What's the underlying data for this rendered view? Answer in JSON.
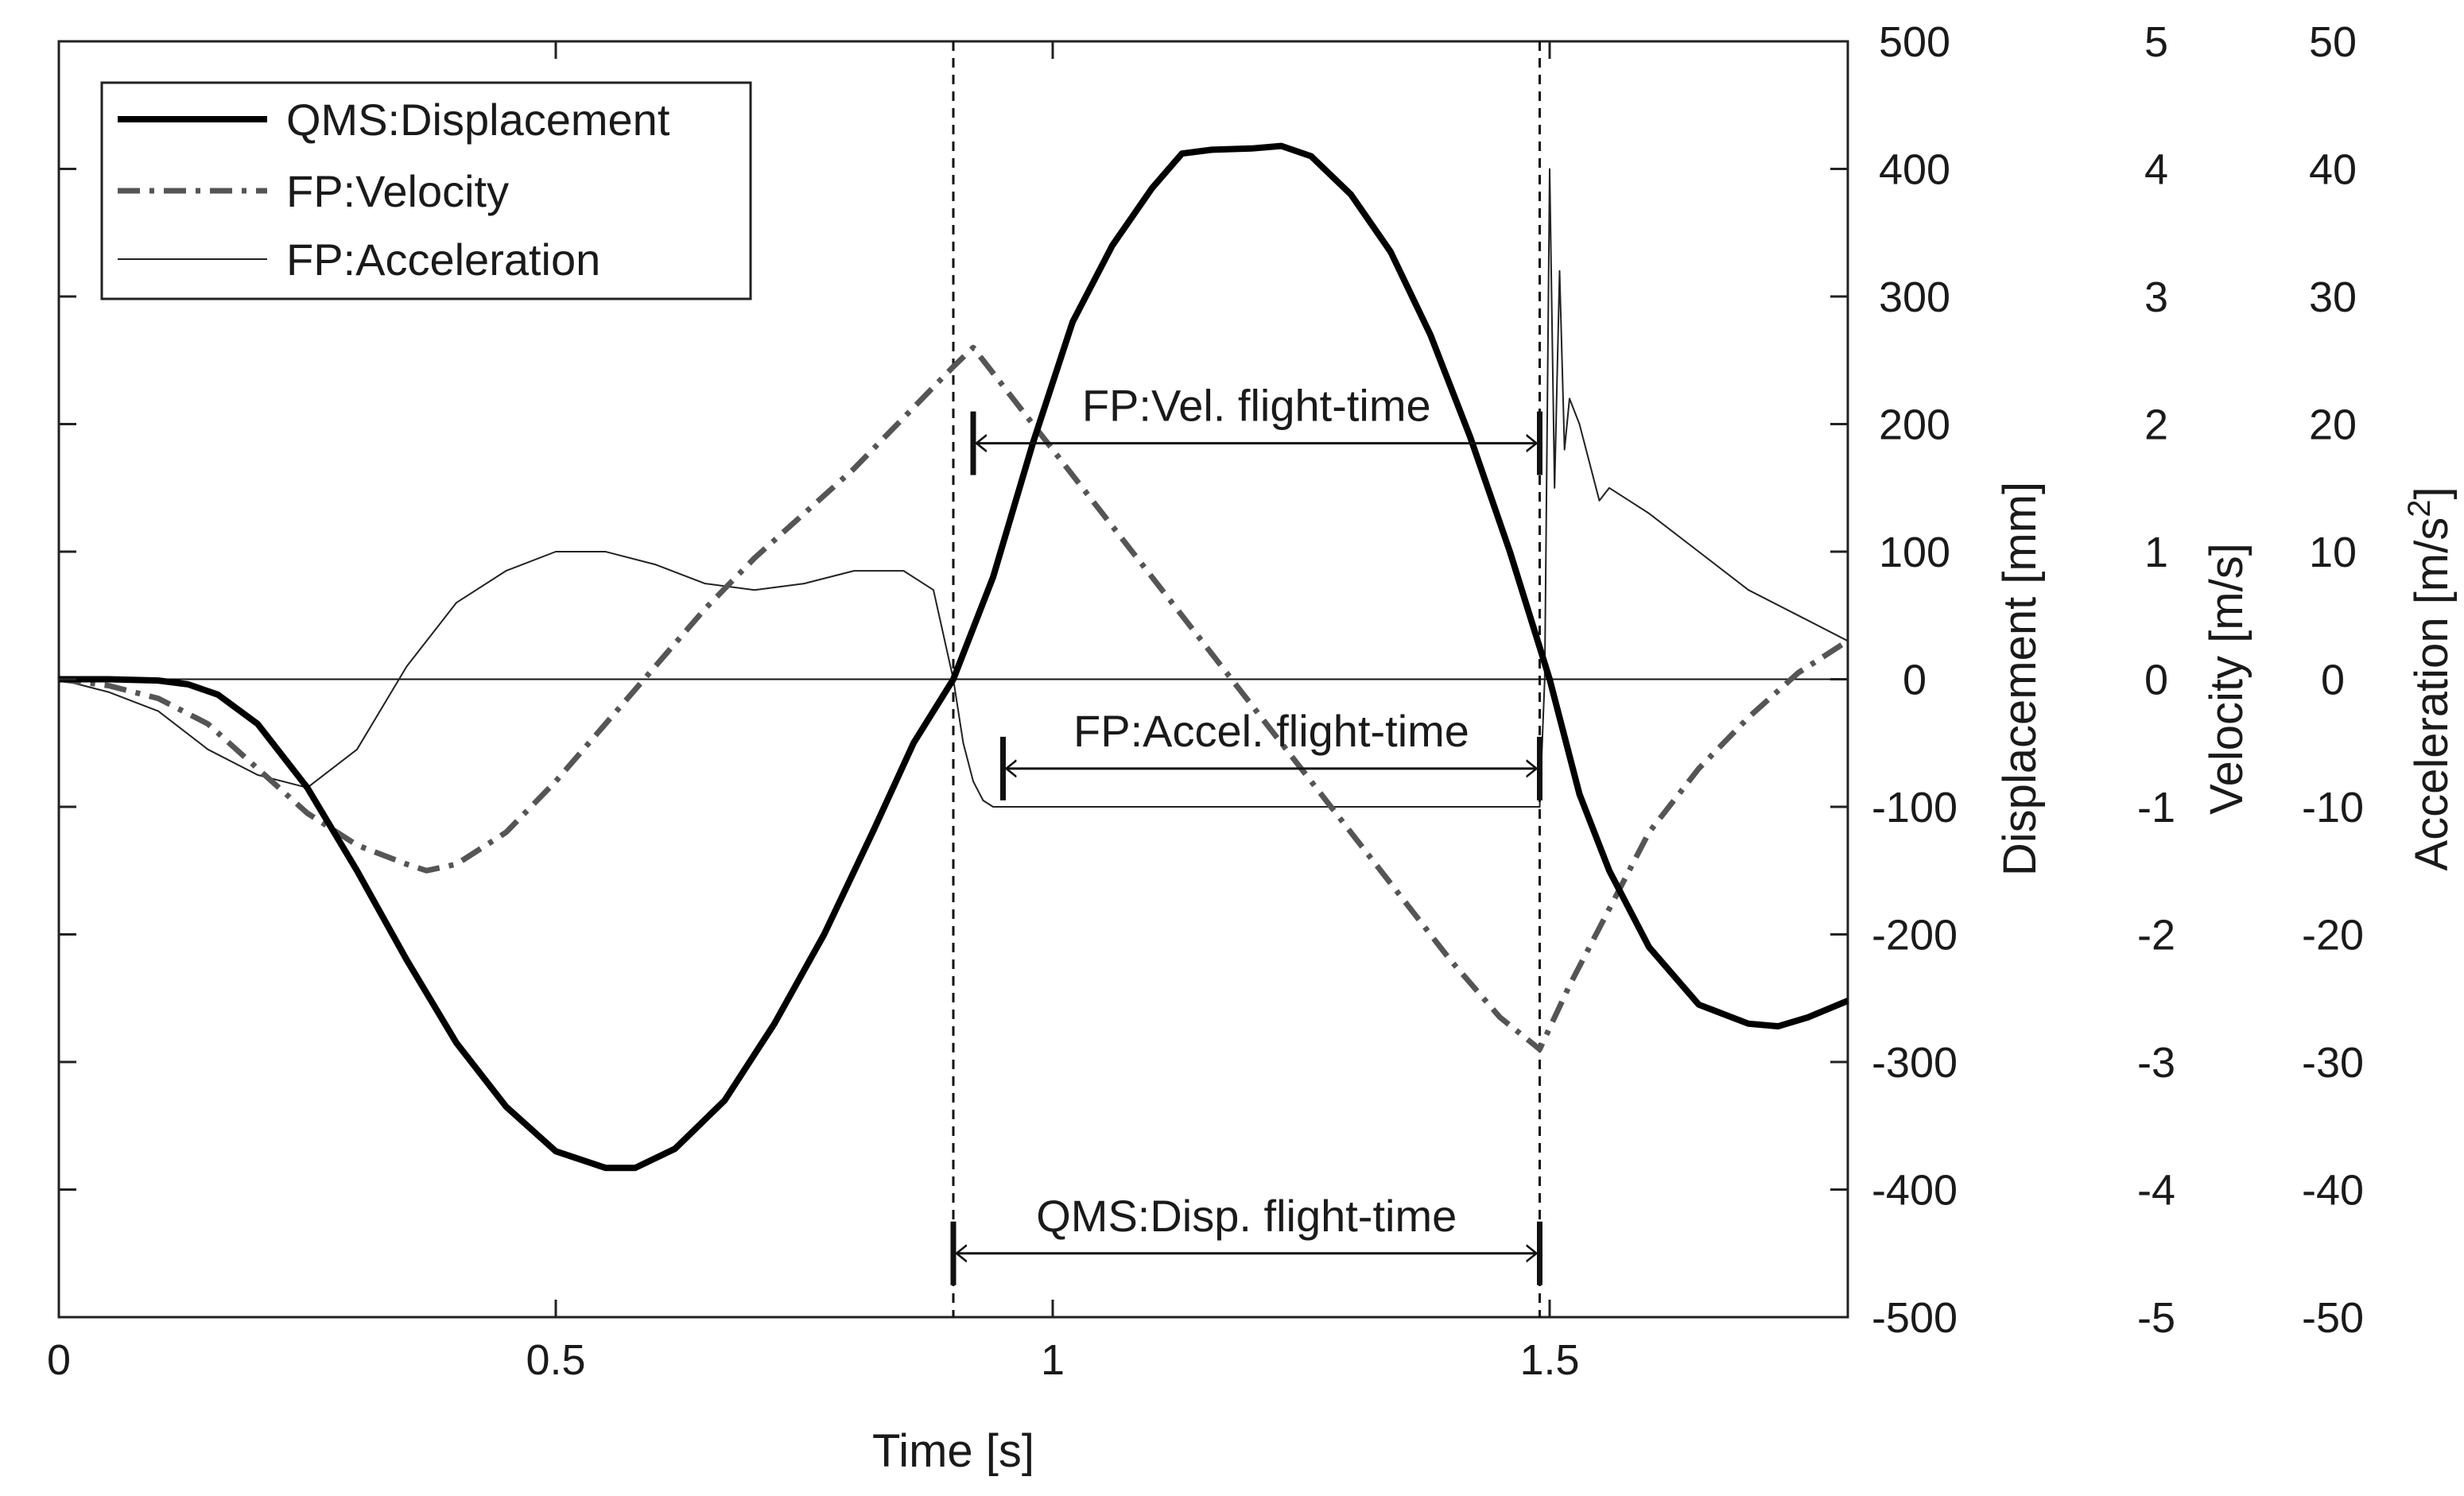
{
  "chart_data": {
    "type": "line",
    "title": "",
    "xlabel": "Time [s]",
    "xlim": [
      0,
      1.8
    ],
    "x_ticks": [
      0,
      0.5,
      1,
      1.5
    ],
    "x_tick_labels": [
      "0",
      "0.5",
      "1",
      "1.5"
    ],
    "y_axes": [
      {
        "label": "Displacement [mm]",
        "ylim": [
          -500,
          500
        ],
        "ticks": [
          500,
          400,
          300,
          200,
          100,
          0,
          -100,
          -200,
          -300,
          -400,
          -500
        ],
        "tick_labels": [
          "500",
          "400",
          "300",
          "200",
          "100",
          "0",
          "-100",
          "-200",
          "-300",
          "-400",
          "-500"
        ]
      },
      {
        "label": "Velocity [m/s]",
        "ylim": [
          -5,
          5
        ],
        "ticks": [
          5,
          4,
          3,
          2,
          1,
          0,
          -1,
          -2,
          -3,
          -4,
          -5
        ],
        "tick_labels": [
          "5",
          "4",
          "3",
          "2",
          "1",
          "0",
          "-1",
          "-2",
          "-3",
          "-4",
          "-5"
        ]
      },
      {
        "label_main": "Acceleration [m/s",
        "label_sup": "2",
        "label_end": "]",
        "ylim": [
          -50,
          50
        ],
        "ticks": [
          50,
          40,
          30,
          20,
          10,
          0,
          -10,
          -20,
          -30,
          -40,
          -50
        ],
        "tick_labels": [
          "50",
          "40",
          "30",
          "20",
          "10",
          "0",
          "-10",
          "-20",
          "-30",
          "-40",
          "-50"
        ]
      }
    ],
    "legend": {
      "placement": "top-left",
      "entries": [
        "QMS:Displacement",
        "FP:Velocity",
        "FP:Acceleration"
      ]
    },
    "series": [
      {
        "name": "QMS:Displacement",
        "units": "mm",
        "style": "solid-thick",
        "color": "#000000",
        "x": [
          0,
          0.05,
          0.1,
          0.13,
          0.16,
          0.2,
          0.25,
          0.3,
          0.35,
          0.4,
          0.45,
          0.5,
          0.55,
          0.58,
          0.62,
          0.67,
          0.72,
          0.77,
          0.82,
          0.86,
          0.9,
          0.94,
          0.98,
          1.02,
          1.06,
          1.1,
          1.13,
          1.16,
          1.2,
          1.23,
          1.26,
          1.3,
          1.34,
          1.38,
          1.42,
          1.46,
          1.5,
          1.53,
          1.56,
          1.6,
          1.65,
          1.7,
          1.73,
          1.76,
          1.8
        ],
        "y": [
          0,
          0,
          -1,
          -4,
          -12,
          -35,
          -85,
          -150,
          -220,
          -285,
          -335,
          -370,
          -383,
          -383,
          -368,
          -330,
          -270,
          -200,
          -118,
          -50,
          0,
          80,
          185,
          280,
          340,
          385,
          412,
          415,
          416,
          418,
          410,
          380,
          335,
          270,
          190,
          100,
          0,
          -90,
          -150,
          -210,
          -255,
          -270,
          -272,
          -265,
          -252
        ]
      },
      {
        "name": "FP:Velocity",
        "units": "m/s",
        "style": "dash-dot",
        "color": "#555555",
        "x": [
          0,
          0.05,
          0.1,
          0.15,
          0.2,
          0.25,
          0.3,
          0.35,
          0.37,
          0.4,
          0.45,
          0.5,
          0.55,
          0.6,
          0.65,
          0.7,
          0.75,
          0.8,
          0.85,
          0.9,
          0.92,
          0.95,
          1.0,
          1.05,
          1.1,
          1.15,
          1.2,
          1.25,
          1.3,
          1.35,
          1.4,
          1.45,
          1.49,
          1.52,
          1.56,
          1.6,
          1.65,
          1.7,
          1.75,
          1.8
        ],
        "y": [
          0,
          -0.05,
          -0.15,
          -0.35,
          -0.7,
          -1.05,
          -1.3,
          -1.45,
          -1.5,
          -1.45,
          -1.2,
          -0.8,
          -0.35,
          0.1,
          0.55,
          0.95,
          1.3,
          1.65,
          2.05,
          2.45,
          2.6,
          2.3,
          1.8,
          1.3,
          0.8,
          0.3,
          -0.2,
          -0.7,
          -1.2,
          -1.7,
          -2.2,
          -2.65,
          -2.9,
          -2.4,
          -1.8,
          -1.2,
          -0.7,
          -0.3,
          0.05,
          0.3
        ]
      },
      {
        "name": "FP:Acceleration",
        "units": "m/s^2",
        "style": "solid-thin",
        "color": "#222222",
        "x": [
          0,
          0.05,
          0.1,
          0.15,
          0.2,
          0.25,
          0.3,
          0.35,
          0.4,
          0.45,
          0.5,
          0.55,
          0.6,
          0.65,
          0.7,
          0.75,
          0.8,
          0.85,
          0.88,
          0.9,
          0.91,
          0.92,
          0.93,
          0.94,
          0.95,
          1.0,
          1.1,
          1.2,
          1.3,
          1.4,
          1.49,
          1.495,
          1.5,
          1.505,
          1.51,
          1.515,
          1.52,
          1.53,
          1.54,
          1.55,
          1.56,
          1.58,
          1.6,
          1.65,
          1.7,
          1.75,
          1.8
        ],
        "y": [
          0,
          -1,
          -2.5,
          -5.5,
          -7.5,
          -8.5,
          -5.5,
          1,
          6,
          8.5,
          10,
          10,
          9,
          7.5,
          7,
          7.5,
          8.5,
          8.5,
          7,
          0,
          -5,
          -8,
          -9.5,
          -10,
          -10,
          -10,
          -10,
          -10,
          -10,
          -10,
          -10,
          0,
          40,
          15,
          32,
          18,
          22,
          20,
          17,
          14,
          15,
          14,
          13,
          10,
          7,
          5,
          3
        ]
      }
    ],
    "vertical_markers": [
      {
        "x": 0.9,
        "style": "dashed"
      },
      {
        "x": 1.49,
        "style": "dashed"
      }
    ],
    "annotations": [
      {
        "label": "FP:Vel. flight-time",
        "x_start": 0.92,
        "x_end": 1.49,
        "axis": "velocity",
        "y": 1.85
      },
      {
        "label": "FP:Accel. flight-time",
        "x_start": 0.95,
        "x_end": 1.49,
        "axis": "acceleration",
        "y": -7
      },
      {
        "label": "QMS:Disp. flight-time",
        "x_start": 0.9,
        "x_end": 1.49,
        "axis": "velocity",
        "y": -4.5
      }
    ]
  }
}
